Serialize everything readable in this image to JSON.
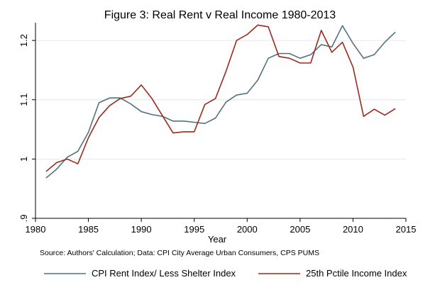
{
  "chart_data": {
    "type": "line",
    "title": "Figure 3: Real Rent v Real Income 1980-2013",
    "xlabel": "Year",
    "ylabel": "",
    "xlim": [
      1980,
      2015
    ],
    "ylim": [
      0.9,
      1.23
    ],
    "x_ticks": [
      1980,
      1985,
      1990,
      1995,
      2000,
      2005,
      2010,
      2015
    ],
    "x_tick_labels": [
      "1980",
      "1985",
      "1990",
      "1995",
      "2000",
      "2005",
      "2010",
      "2015"
    ],
    "y_ticks": [
      0.9,
      1.0,
      1.1,
      1.2
    ],
    "y_tick_labels": [
      ".9",
      "1",
      "1.1",
      "1.2"
    ],
    "grid": true,
    "legend_position": "bottom",
    "source_note": "Source: Authors' Calculation; Data: CPI City Average Urban Consumers, CPS PUMS",
    "x": [
      1981,
      1982,
      1983,
      1984,
      1985,
      1986,
      1987,
      1988,
      1989,
      1990,
      1991,
      1992,
      1993,
      1994,
      1995,
      1996,
      1997,
      1998,
      1999,
      2000,
      2001,
      2002,
      2003,
      2004,
      2005,
      2006,
      2007,
      2008,
      2009,
      2010,
      2011,
      2012,
      2013,
      2014
    ],
    "series": [
      {
        "name": "CPI Rent Index/ Less Shelter Index",
        "color": "#4f7480",
        "values": [
          0.968,
          0.983,
          1.003,
          1.013,
          1.045,
          1.095,
          1.103,
          1.103,
          1.093,
          1.08,
          1.075,
          1.072,
          1.064,
          1.064,
          1.062,
          1.06,
          1.069,
          1.096,
          1.108,
          1.111,
          1.133,
          1.17,
          1.178,
          1.178,
          1.17,
          1.176,
          1.193,
          1.189,
          1.225,
          1.195,
          1.17,
          1.176,
          1.197,
          1.214
        ]
      },
      {
        "name": "25th Pctile Income Index",
        "color": "#9b2a1e",
        "values": [
          0.979,
          0.994,
          1.0,
          0.992,
          1.036,
          1.07,
          1.09,
          1.102,
          1.106,
          1.125,
          1.102,
          1.073,
          1.044,
          1.046,
          1.046,
          1.092,
          1.102,
          1.148,
          1.2,
          1.21,
          1.226,
          1.223,
          1.173,
          1.17,
          1.162,
          1.162,
          1.217,
          1.18,
          1.197,
          1.155,
          1.072,
          1.084,
          1.074,
          1.085
        ]
      }
    ]
  }
}
